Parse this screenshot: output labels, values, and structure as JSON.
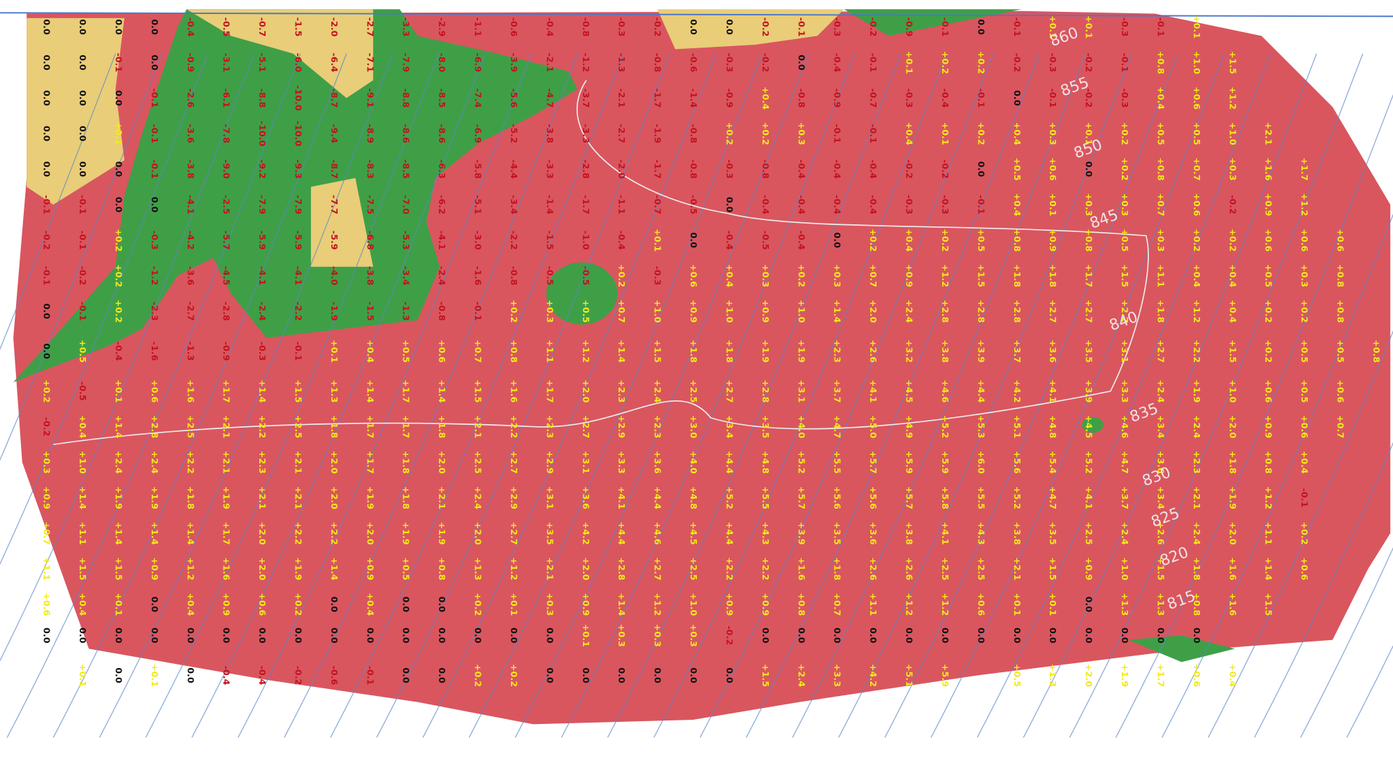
{
  "contours": {
    "labels": [
      "860",
      "855",
      "850",
      "845",
      "840",
      "835",
      "830",
      "825",
      "820",
      "815"
    ]
  },
  "grid": {
    "rows": [
      [
        "0.0",
        "0.0",
        "0.0",
        "0.0",
        "-0.4",
        "-0.5",
        "-0.7",
        "-1.5",
        "-2.0",
        "-2.7",
        "-3.3",
        "-2.9",
        "-1.1",
        "-0.6",
        "-0.4",
        "-0.8",
        "-0.3",
        "-0.2",
        "0.0",
        "0.0",
        "-0.2",
        "-0.1",
        "-0.3",
        "-0.2",
        "-0.9",
        "-0.1",
        "0.0",
        "-0.1",
        "+0.1",
        "+0.1",
        "-0.3",
        "-0.1",
        "+0.1",
        null,
        null,
        null,
        null,
        null
      ],
      [
        "0.0",
        "0.0",
        "-0.1",
        "0.0",
        "-0.9",
        "-3.1",
        "-5.1",
        "-6.0",
        "-6.4",
        "-7.1",
        "-7.9",
        "-8.0",
        "-6.9",
        "-3.9",
        "-2.1",
        "-1.2",
        "-1.3",
        "-0.8",
        "-0.6",
        "-0.3",
        "-0.2",
        "0.0",
        "-0.4",
        "-0.1",
        "+0.1",
        "+0.2",
        "+0.2",
        "-0.2",
        "-0.3",
        "-0.2",
        "-0.1",
        "+0.8",
        "+1.0",
        "+1.5",
        null,
        null,
        null,
        null
      ],
      [
        "0.0",
        "0.0",
        "0.0",
        "-0.1",
        "-2.6",
        "-6.1",
        "-8.8",
        "-10.0",
        "-8.7",
        "-9.1",
        "-8.8",
        "-8.5",
        "-7.4",
        "-5.6",
        "-4.7",
        "-3.7",
        "-2.1",
        "-1.7",
        "-1.4",
        "-0.9",
        "+0.4",
        "-0.8",
        "-0.9",
        "-0.7",
        "-0.3",
        "-0.4",
        "-0.1",
        "0.0",
        "-0.1",
        "-0.2",
        "-0.3",
        "+0.4",
        "+0.6",
        "+1.2",
        null,
        null,
        null,
        null
      ],
      [
        "0.0",
        "0.0",
        "+0.1",
        "-0.1",
        "-3.6",
        "-7.8",
        "-10.0",
        "-10.0",
        "-9.4",
        "-8.9",
        "-8.6",
        "-8.6",
        "-6.9",
        "-5.2",
        "-3.8",
        "-3.3",
        "-2.7",
        "-1.9",
        "-0.8",
        "+0.2",
        "+0.2",
        "+0.3",
        "-0.1",
        "-0.1",
        "+0.4",
        "+0.1",
        "+0.2",
        "+0.4",
        "+0.3",
        "+0.1",
        "+0.2",
        "+0.5",
        "+0.5",
        "+1.0",
        "+2.1",
        null,
        null,
        null
      ],
      [
        "0.0",
        "0.0",
        "0.0",
        "-0.1",
        "-3.8",
        "-9.0",
        "-9.2",
        "-9.3",
        "-8.7",
        "-8.3",
        "-8.5",
        "-6.3",
        "-5.8",
        "-4.4",
        "-3.3",
        "-2.8",
        "-2.0",
        "-1.7",
        "-0.8",
        "-0.3",
        "-0.8",
        "-0.4",
        "-0.4",
        "-0.4",
        "-0.2",
        "-0.2",
        "0.0",
        "+0.5",
        "+0.6",
        "0.0",
        "+0.2",
        "+0.8",
        "+0.7",
        "+0.3",
        "+1.6",
        "+1.7",
        null,
        null
      ],
      [
        "-0.1",
        "-0.1",
        "0.0",
        "0.0",
        "-4.1",
        "-2.5",
        "-7.9",
        "-7.9",
        "-7.7",
        "-7.5",
        "-7.0",
        "-6.2",
        "-5.1",
        "-3.4",
        "-1.4",
        "-1.7",
        "-1.1",
        "-0.7",
        "-0.5",
        "0.0",
        "-0.4",
        "-0.4",
        "-0.4",
        "-0.4",
        "-0.3",
        "-0.3",
        "-0.1",
        "+0.4",
        "+0.1",
        "+0.3",
        "+0.3",
        "+0.7",
        "+0.6",
        "-0.2",
        "+0.9",
        "+1.2",
        null,
        null
      ],
      [
        "-0.2",
        "-0.1",
        "+0.2",
        "-0.3",
        "-4.2",
        "-5.7",
        "-5.9",
        "-5.9",
        "-5.9",
        "-6.8",
        "-5.3",
        "-4.1",
        "-3.0",
        "-2.2",
        "-1.5",
        "-1.0",
        "-0.4",
        "+0.1",
        "0.0",
        "-0.4",
        "-0.5",
        "-0.4",
        "0.0",
        "+0.2",
        "+0.4",
        "+0.2",
        "+0.5",
        "+0.8",
        "+0.9",
        "+0.8",
        "+0.5",
        "+0.3",
        "+0.2",
        "+0.2",
        "+0.6",
        "+0.6",
        "+0.6",
        null
      ],
      [
        "-0.1",
        "-0.2",
        "+0.2",
        "-1.2",
        "-3.6",
        "-4.5",
        "-4.1",
        "-4.1",
        "-4.0",
        "-3.8",
        "-3.4",
        "-2.4",
        "-1.6",
        "-0.8",
        "-0.5",
        "-0.5",
        "+0.2",
        "-0.3",
        "+0.6",
        "+0.4",
        "+0.3",
        "+0.2",
        "+0.3",
        "+0.7",
        "+0.9",
        "+1.2",
        "+1.5",
        "+1.8",
        "+1.8",
        "+1.7",
        "+1.5",
        "+1.1",
        "+0.4",
        "+0.4",
        "+0.5",
        "+0.3",
        "+0.8",
        null
      ],
      [
        "0.0",
        "-0.1",
        "+0.2",
        "-2.3",
        "-2.7",
        "-2.8",
        "-2.4",
        "-2.2",
        "-1.9",
        "-1.5",
        "-1.3",
        "-0.8",
        "-0.1",
        "+0.2",
        "+0.3",
        "+0.5",
        "+0.7",
        "+1.0",
        "+0.9",
        "+1.0",
        "+0.9",
        "+1.0",
        "+1.4",
        "+2.0",
        "+2.4",
        "+2.8",
        "+2.8",
        "+2.8",
        "+2.7",
        "+2.7",
        "+2.2",
        "+1.8",
        "+1.2",
        "+0.4",
        "+0.2",
        "+0.2",
        "+0.8",
        null
      ],
      [
        "0.0",
        "+0.5",
        "-0.4",
        "-1.6",
        "-1.3",
        "-0.9",
        "-0.3",
        "-0.1",
        "+0.1",
        "+0.4",
        "+0.5",
        "+0.6",
        "+0.7",
        "+0.8",
        "+1.1",
        "+1.2",
        "+1.4",
        "+1.5",
        "+1.8",
        "+1.8",
        "+1.9",
        "+1.9",
        "+2.3",
        "+2.6",
        "+3.2",
        "+3.8",
        "+3.9",
        "+3.7",
        "+3.6",
        "+3.5",
        "+3.1",
        "+2.7",
        "+2.2",
        "+1.5",
        "+0.2",
        "+0.5",
        "+0.5",
        "+0.8"
      ],
      [
        "+0.2",
        "-0.5",
        "+0.1",
        "+0.6",
        "+1.6",
        "+1.7",
        "+1.4",
        "+1.5",
        "+1.3",
        "+1.4",
        "+1.7",
        "+1.4",
        "+1.5",
        "+1.6",
        "+1.7",
        "+2.0",
        "+2.3",
        "+2.4",
        "+2.5",
        "+2.7",
        "+2.8",
        "+3.1",
        "+3.7",
        "+4.1",
        "+4.5",
        "+4.6",
        "+4.4",
        "+4.2",
        "+4.1",
        "+3.9",
        "+3.3",
        "+2.4",
        "+1.9",
        "+1.0",
        "+0.6",
        "+0.5",
        "+0.6",
        null
      ],
      [
        "-0.2",
        "+0.4",
        "+1.4",
        "+2.8",
        "+2.5",
        "+2.1",
        "+2.2",
        "+2.5",
        "+1.8",
        "+1.7",
        "+1.7",
        "+1.8",
        "+2.1",
        "+2.2",
        "+2.3",
        "+2.7",
        "+2.9",
        "+2.3",
        "+3.0",
        "+3.4",
        "+3.5",
        "+4.0",
        "+4.7",
        "+5.0",
        "+4.9",
        "+5.2",
        "+5.3",
        "+5.1",
        "+4.8",
        "+4.5",
        "+4.6",
        "+3.4",
        "+2.4",
        "+2.0",
        "+0.9",
        "+0.6",
        "+0.7",
        null
      ],
      [
        "+0.3",
        "+1.0",
        "+2.4",
        "+2.4",
        "+2.2",
        "+2.1",
        "+2.3",
        "+2.1",
        "+2.0",
        "+1.7",
        "+1.8",
        "+2.0",
        "+2.5",
        "+2.7",
        "+2.9",
        "+3.1",
        "+3.3",
        "+3.6",
        "+4.0",
        "+4.4",
        "+4.8",
        "+5.2",
        "+5.5",
        "+5.7",
        "+5.9",
        "+5.9",
        "+6.0",
        "+5.6",
        "+5.4",
        "+5.2",
        "+4.7",
        "+3.6",
        "+2.3",
        "+1.8",
        "+0.8",
        "+0.4",
        null,
        null
      ],
      [
        "+0.9",
        "+1.4",
        "+1.9",
        "+1.9",
        "+1.8",
        "+1.9",
        "+2.1",
        "+2.1",
        "+2.0",
        "+1.9",
        "+1.8",
        "+2.1",
        "+2.4",
        "+2.9",
        "+3.1",
        "+3.6",
        "+4.1",
        "+4.4",
        "+4.8",
        "+5.2",
        "+5.5",
        "+5.7",
        "+5.6",
        "+5.6",
        "+5.7",
        "+5.8",
        "+5.5",
        "+5.2",
        "+4.7",
        "+4.1",
        "+3.7",
        "+3.4",
        "+2.1",
        "+1.9",
        "+1.2",
        "-0.1",
        null,
        null
      ],
      [
        "+0.7",
        "+1.1",
        "+1.4",
        "+1.4",
        "+1.4",
        "+1.7",
        "+2.0",
        "+2.2",
        "+2.2",
        "+2.0",
        "+1.9",
        "+1.9",
        "+2.0",
        "+2.7",
        "+3.5",
        "+4.2",
        "+4.4",
        "+4.6",
        "+4.5",
        "+4.4",
        "+4.3",
        "+3.9",
        "+3.5",
        "+3.6",
        "+3.8",
        "+4.1",
        "+4.3",
        "+3.8",
        "+3.5",
        "+2.5",
        "+2.4",
        "+2.6",
        "+2.4",
        "+2.0",
        "+1.1",
        "+0.2",
        null,
        null
      ],
      [
        "+1.1",
        "+1.5",
        "+1.5",
        "+0.9",
        "+1.2",
        "+1.6",
        "+2.0",
        "+1.9",
        "+1.4",
        "+0.9",
        "+0.5",
        "+0.8",
        "+1.3",
        "+1.2",
        "+2.1",
        "+2.0",
        "+2.8",
        "+2.7",
        "+2.5",
        "+2.2",
        "+2.2",
        "+1.6",
        "+1.8",
        "+2.6",
        "+2.6",
        "+2.5",
        "+2.5",
        "+2.1",
        "+1.5",
        "+0.9",
        "+1.0",
        "+1.5",
        "+1.8",
        "+1.6",
        "+1.4",
        "+0.6",
        null,
        null
      ],
      [
        "+0.6",
        "+0.4",
        "+0.1",
        "0.0",
        "+0.4",
        "+0.9",
        "+0.6",
        "+0.2",
        "0.0",
        "+0.4",
        "0.0",
        "0.0",
        "+0.2",
        "+0.1",
        "+0.3",
        "+0.9",
        "+1.4",
        "+1.2",
        "+1.0",
        "+0.9",
        "+0.9",
        "+0.8",
        "+0.7",
        "+1.1",
        "+1.2",
        "+1.2",
        "+0.6",
        "+0.1",
        "+0.1",
        "0.0",
        "+1.3",
        "+1.3",
        "+0.8",
        "+1.6",
        "+1.5",
        null,
        null,
        null
      ],
      [
        "0.0",
        "0.0",
        "0.0",
        "0.0",
        "0.0",
        "0.0",
        "0.0",
        "0.0",
        "0.0",
        "0.0",
        "0.0",
        "0.0",
        "0.0",
        "0.0",
        "0.0",
        "+0.1",
        "+0.3",
        "+0.3",
        "+0.3",
        "-0.2",
        "0.0",
        "0.0",
        "0.0",
        "0.0",
        "0.0",
        "0.0",
        "0.0",
        "0.0",
        "0.0",
        "0.0",
        "0.0",
        "0.0",
        "0.0",
        null,
        null,
        null,
        null,
        null
      ],
      [
        null,
        "+0.1",
        "0.0",
        "+0.1",
        "0.0",
        "-0.4",
        "-0.4",
        "-0.2",
        "-0.6",
        "-0.1",
        "0.0",
        "0.0",
        "+0.2",
        "+0.2",
        "0.0",
        "0.0",
        "0.0",
        "0.0",
        "0.0",
        "0.0",
        "+1.5",
        "+2.4",
        "+3.3",
        "+4.2",
        "+5.1",
        "+5.9",
        null,
        "+0.5",
        "+1.3",
        "+2.0",
        "+1.9",
        "+1.7",
        "+0.6",
        "+0.4",
        null,
        null,
        null,
        null
      ]
    ]
  }
}
